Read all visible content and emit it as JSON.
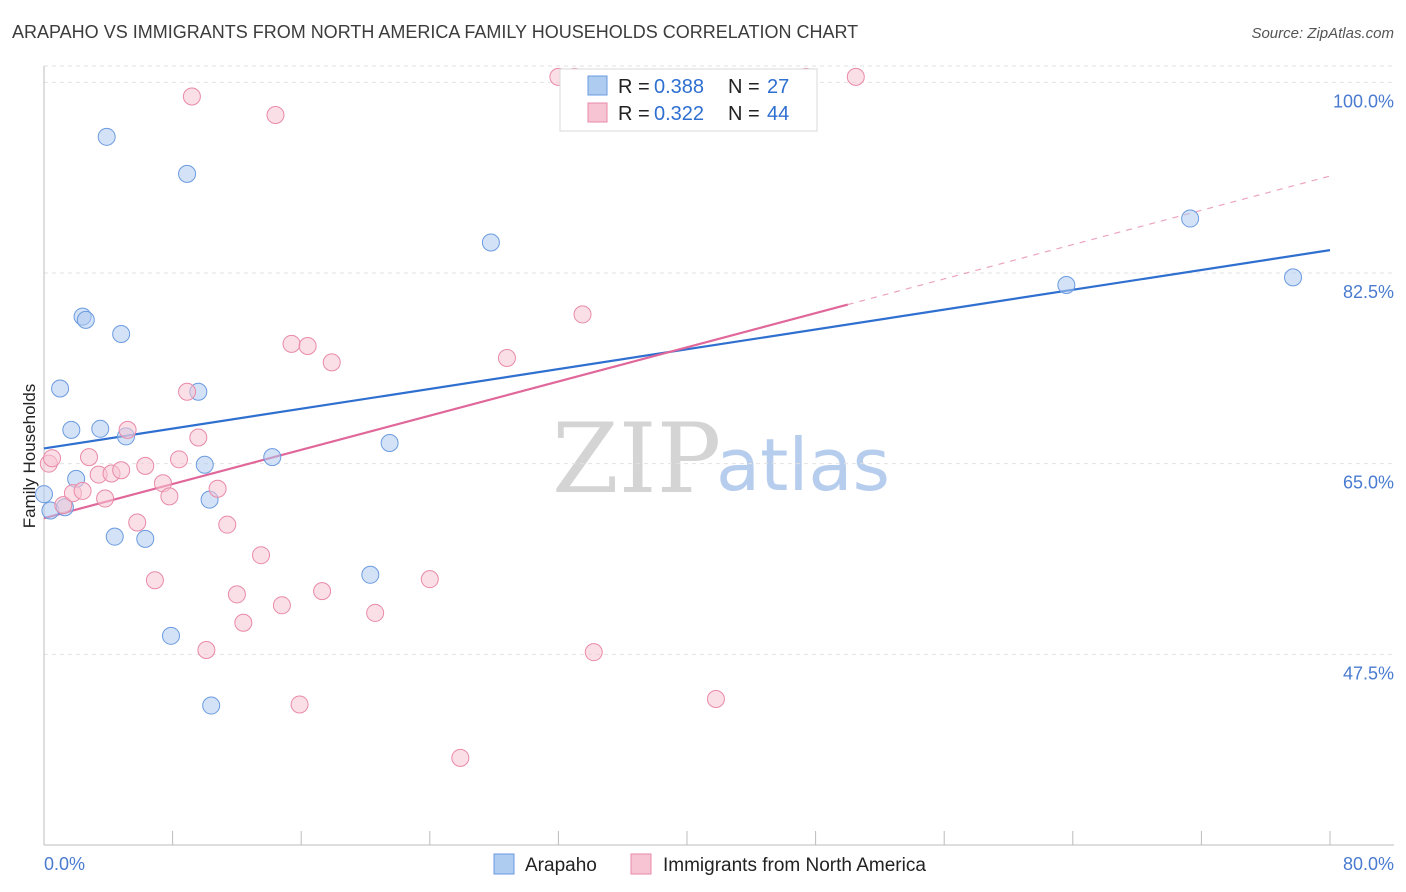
{
  "title": "ARAPAHO VS IMMIGRANTS FROM NORTH AMERICA FAMILY HOUSEHOLDS CORRELATION CHART",
  "source": "Source: ZipAtlas.com",
  "watermark": {
    "zip": "ZIP",
    "atlas": "atlas"
  },
  "legend": {
    "r_label": "R =",
    "n_label": "N =",
    "entries": [
      {
        "r": "0.388",
        "n": "27",
        "color": "#aecbf0",
        "stroke": "#6b9be0"
      },
      {
        "r": "0.322",
        "n": "44",
        "color": "#f7c4d4",
        "stroke": "#e98aa8"
      }
    ]
  },
  "chart_data": {
    "type": "scatter",
    "ylabel": "Family Households",
    "xlabel": "",
    "xlim": [
      0,
      80
    ],
    "ylim": [
      30,
      101.5
    ],
    "x_tick_labels": [
      "0.0%",
      "80.0%"
    ],
    "y_ticks": [
      47.5,
      65.0,
      82.5,
      100.0
    ],
    "y_tick_labels": [
      "47.5%",
      "65.0%",
      "82.5%",
      "100.0%"
    ],
    "grid": true,
    "series": [
      {
        "name": "Arapaho",
        "color": "#aecbf0",
        "stroke": "#6b9be0",
        "line_color": "#2f6fd0",
        "trend": {
          "x": [
            0,
            80
          ],
          "y": [
            66.4,
            84.6
          ]
        },
        "points": [
          [
            0.0,
            62.2
          ],
          [
            0.4,
            60.7
          ],
          [
            1.3,
            61.0
          ],
          [
            1.0,
            71.9
          ],
          [
            1.7,
            68.1
          ],
          [
            2.0,
            63.6
          ],
          [
            2.4,
            78.5
          ],
          [
            2.6,
            78.2
          ],
          [
            3.5,
            68.2
          ],
          [
            3.9,
            95.0
          ],
          [
            4.4,
            58.3
          ],
          [
            4.8,
            76.9
          ],
          [
            5.1,
            67.5
          ],
          [
            6.3,
            58.1
          ],
          [
            7.9,
            49.2
          ],
          [
            8.9,
            91.6
          ],
          [
            9.6,
            71.6
          ],
          [
            10.0,
            64.9
          ],
          [
            10.3,
            61.7
          ],
          [
            10.4,
            42.8
          ],
          [
            14.2,
            65.6
          ],
          [
            20.3,
            54.8
          ],
          [
            21.5,
            66.9
          ],
          [
            27.8,
            85.3
          ],
          [
            63.6,
            81.4
          ],
          [
            71.3,
            87.5
          ],
          [
            77.7,
            82.1
          ]
        ]
      },
      {
        "name": "Immigrants from North America",
        "color": "#f7c4d4",
        "stroke": "#e98aa8",
        "line_color": "#e0679a",
        "trend": {
          "x": [
            0,
            50
          ],
          "y": [
            60.0,
            79.6
          ]
        },
        "trend_extension": {
          "x": [
            50,
            80
          ],
          "y": [
            79.6,
            91.4
          ]
        },
        "points": [
          [
            0.3,
            65.0
          ],
          [
            0.5,
            65.5
          ],
          [
            1.2,
            61.2
          ],
          [
            1.8,
            62.3
          ],
          [
            2.4,
            62.5
          ],
          [
            2.8,
            65.6
          ],
          [
            3.4,
            64.0
          ],
          [
            3.8,
            61.8
          ],
          [
            4.2,
            64.1
          ],
          [
            4.8,
            64.4
          ],
          [
            5.2,
            68.1
          ],
          [
            5.8,
            59.6
          ],
          [
            6.3,
            64.8
          ],
          [
            6.9,
            54.3
          ],
          [
            7.4,
            63.2
          ],
          [
            7.8,
            62.0
          ],
          [
            8.4,
            65.4
          ],
          [
            8.9,
            71.6
          ],
          [
            9.6,
            67.4
          ],
          [
            10.1,
            47.9
          ],
          [
            10.8,
            62.7
          ],
          [
            11.4,
            59.4
          ],
          [
            12.0,
            53.0
          ],
          [
            12.4,
            50.4
          ],
          [
            13.5,
            56.6
          ],
          [
            14.4,
            97.0
          ],
          [
            14.8,
            52.0
          ],
          [
            15.4,
            76.0
          ],
          [
            15.9,
            42.9
          ],
          [
            16.4,
            75.8
          ],
          [
            17.3,
            53.3
          ],
          [
            17.9,
            74.3
          ],
          [
            20.6,
            51.3
          ],
          [
            24.0,
            54.4
          ],
          [
            25.9,
            38.0
          ],
          [
            28.8,
            74.7
          ],
          [
            32.0,
            100.5
          ],
          [
            33.0,
            100.5
          ],
          [
            33.5,
            78.7
          ],
          [
            34.2,
            47.7
          ],
          [
            41.8,
            43.4
          ],
          [
            47.4,
            100.5
          ],
          [
            50.5,
            100.5
          ],
          [
            9.2,
            98.7
          ]
        ]
      }
    ]
  }
}
